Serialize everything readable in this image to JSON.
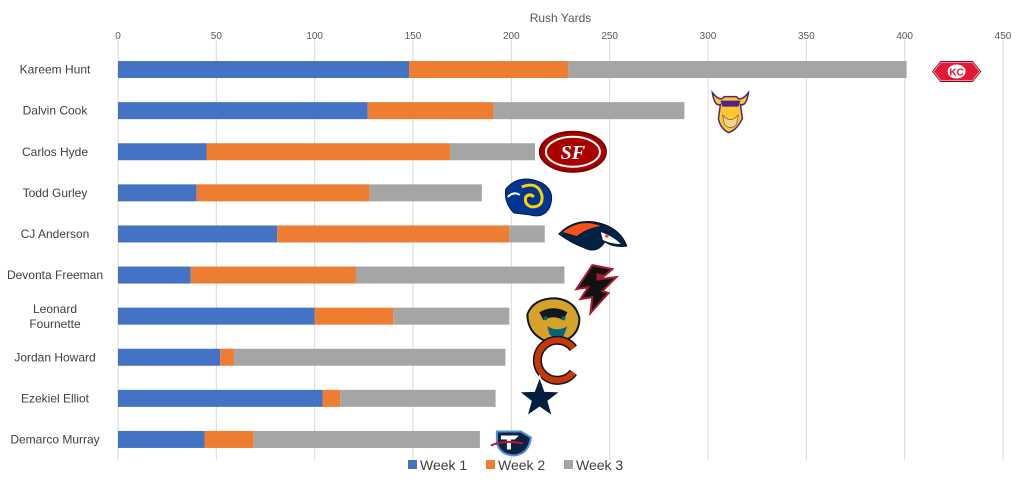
{
  "chart_data": {
    "type": "bar",
    "orientation": "horizontal",
    "stacked": true,
    "xlabel": "Rush Yards",
    "xlim": [
      0,
      450
    ],
    "x_ticks": [
      0,
      50,
      100,
      150,
      200,
      250,
      300,
      350,
      400,
      450
    ],
    "grid": true,
    "legend_position": "bottom",
    "categories": [
      "Kareem Hunt",
      "Dalvin Cook",
      "Carlos Hyde",
      "Todd Gurley",
      "CJ Anderson",
      "Devonta Freeman",
      "Leonard Fournette",
      "Jordan Howard",
      "Ezekiel Elliot",
      "Demarco Murray"
    ],
    "series": [
      {
        "name": "Week 1",
        "color": "#4472C4",
        "values": [
          148,
          127,
          45,
          40,
          81,
          37,
          100,
          52,
          104,
          44
        ]
      },
      {
        "name": "Week 2",
        "color": "#ED7D31",
        "values": [
          81,
          64,
          124,
          88,
          118,
          84,
          40,
          7,
          9,
          25
        ]
      },
      {
        "name": "Week 3",
        "color": "#A5A5A5",
        "values": [
          172,
          97,
          43,
          57,
          18,
          106,
          59,
          138,
          79,
          115
        ]
      }
    ],
    "team_logos": [
      "chiefs-logo-icon",
      "vikings-logo-icon",
      "49ers-logo-icon",
      "rams-logo-icon",
      "broncos-logo-icon",
      "falcons-logo-icon",
      "jaguars-logo-icon",
      "bears-logo-icon",
      "cowboys-logo-icon",
      "titans-logo-icon"
    ]
  }
}
